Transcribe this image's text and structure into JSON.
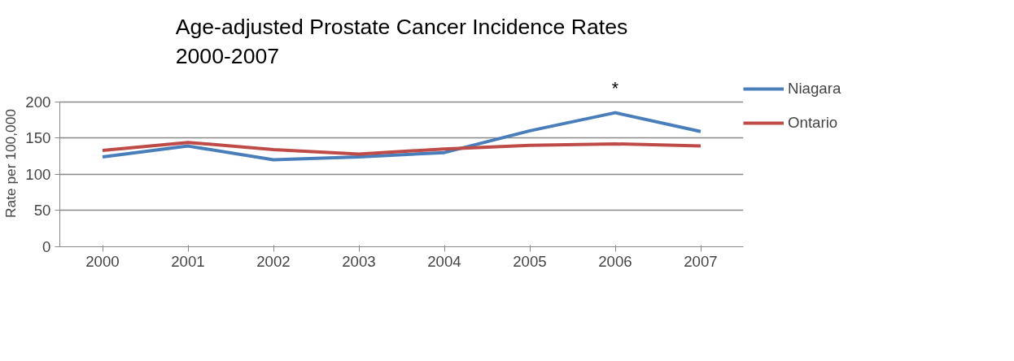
{
  "chart_data": {
    "type": "line",
    "title": "Age-adjusted Prostate Cancer Incidence Rates\n2000-2007",
    "ylabel": "Rate per 100,000",
    "categories": [
      "2000",
      "2001",
      "2002",
      "2003",
      "2004",
      "2005",
      "2006",
      "2007"
    ],
    "series": [
      {
        "name": "Niagara",
        "color": "#4a7ebb",
        "values": [
          124,
          139,
          120,
          124,
          130,
          160,
          185,
          159
        ]
      },
      {
        "name": "Ontario",
        "color": "#be4b48",
        "values": [
          133,
          144,
          134,
          128,
          135,
          140,
          142,
          139
        ]
      }
    ],
    "ylim": [
      0,
      200
    ],
    "yticks": [
      0,
      50,
      100,
      150,
      200
    ],
    "grid": "y",
    "legend": "right",
    "marker": "none",
    "line_style": "solid",
    "annotations": [
      {
        "text": "*",
        "x": "2006",
        "y": 185
      }
    ]
  }
}
